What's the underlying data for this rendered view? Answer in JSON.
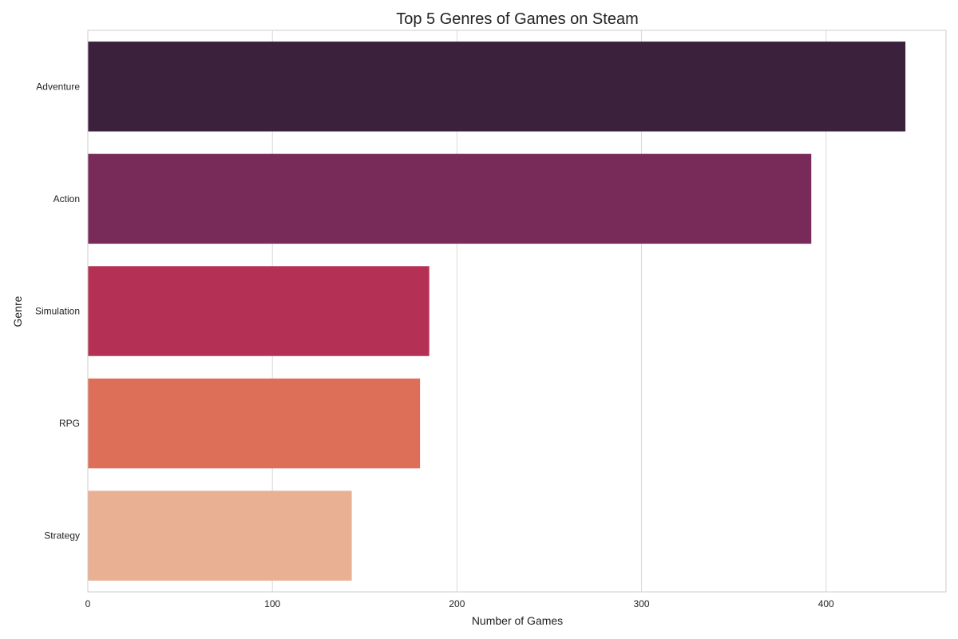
{
  "chart_data": {
    "type": "bar",
    "orientation": "horizontal",
    "title": "Top 5 Genres of Games on Steam",
    "xlabel": "Number of Games",
    "ylabel": "Genre",
    "categories": [
      "Adventure",
      "Action",
      "Simulation",
      "RPG",
      "Strategy"
    ],
    "values": [
      443,
      392,
      185,
      180,
      143
    ],
    "colors": [
      "#3c213c",
      "#782a59",
      "#b53055",
      "#dd6e58",
      "#eab094"
    ],
    "xlim": [
      0,
      465
    ],
    "xticks": [
      0,
      100,
      200,
      300,
      400
    ],
    "grid": true,
    "legend": "none"
  }
}
